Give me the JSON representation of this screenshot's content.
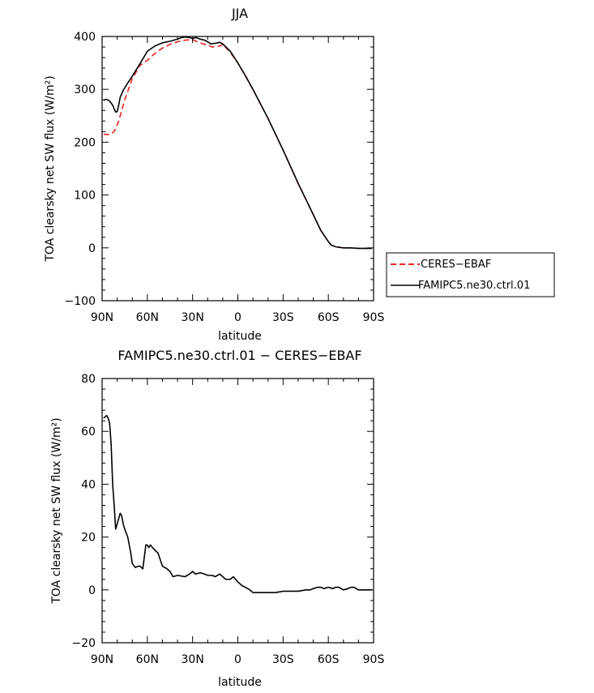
{
  "chart_data": [
    {
      "type": "line",
      "title": "JJA",
      "xlabel": "latitude",
      "ylabel": "TOA clearsky net SW flux (W/m²)",
      "xlim": [
        90,
        -90
      ],
      "ylim": [
        -100,
        400
      ],
      "xticks": [
        90,
        60,
        30,
        0,
        -30,
        -60,
        -90
      ],
      "xtick_labels": [
        "90N",
        "60N",
        "30N",
        "0",
        "30S",
        "60S",
        "90S"
      ],
      "yticks": [
        -100,
        0,
        100,
        200,
        300,
        400
      ],
      "ytick_labels": [
        "−100",
        "0",
        "100",
        "200",
        "300",
        "400"
      ],
      "legend_position": "right",
      "series": [
        {
          "name": "CERES−EBAF",
          "color": "#e8231f",
          "dash": "dashed",
          "x": [
            89,
            85,
            82,
            79,
            75,
            70,
            65,
            60,
            55,
            50,
            45,
            40,
            35,
            30,
            27,
            25,
            22,
            20,
            17,
            15,
            12,
            10,
            5,
            0,
            -5,
            -10,
            -20,
            -30,
            -40,
            -50,
            -55,
            -60,
            -62,
            -65,
            -70,
            -75,
            -80,
            -85,
            -89
          ],
          "y": [
            215,
            214,
            220,
            240,
            280,
            320,
            345,
            355,
            368,
            378,
            385,
            390,
            393,
            394,
            390,
            388,
            385,
            384,
            380,
            381,
            382,
            385,
            370,
            350,
            325,
            300,
            245,
            185,
            122,
            63,
            33,
            12,
            5,
            2,
            0,
            0,
            -1,
            -1,
            -1
          ]
        },
        {
          "name": "FAMIPC5.ne30.ctrl.01",
          "color": "#000000",
          "dash": "solid",
          "x": [
            89,
            87,
            85,
            83,
            82,
            81,
            80,
            79,
            78,
            76,
            73,
            70,
            65,
            60,
            55,
            50,
            45,
            40,
            37,
            35,
            32,
            30,
            28,
            25,
            22,
            20,
            18,
            15,
            12,
            10,
            5,
            0,
            -5,
            -10,
            -20,
            -30,
            -40,
            -50,
            -55,
            -60,
            -62,
            -65,
            -70,
            -75,
            -80,
            -85,
            -89
          ],
          "y": [
            280,
            281,
            278,
            270,
            263,
            257,
            258,
            270,
            285,
            298,
            312,
            325,
            348,
            372,
            382,
            388,
            391,
            395,
            398,
            399,
            398,
            396,
            398,
            395,
            393,
            390,
            386,
            387,
            389,
            386,
            372,
            350,
            326,
            300,
            245,
            185,
            122,
            63,
            33,
            12,
            5,
            2,
            0,
            0,
            -1,
            -1,
            -1
          ]
        }
      ]
    },
    {
      "type": "line",
      "title": "FAMIPC5.ne30.ctrl.01 − CERES−EBAF",
      "xlabel": "latitude",
      "ylabel": "TOA clearsky net SW flux (W/m²)",
      "xlim": [
        90,
        -90
      ],
      "ylim": [
        -20,
        80
      ],
      "xticks": [
        90,
        60,
        30,
        0,
        -30,
        -60,
        -90
      ],
      "xtick_labels": [
        "90N",
        "60N",
        "30N",
        "0",
        "30S",
        "60S",
        "90S"
      ],
      "yticks": [
        -20,
        0,
        20,
        40,
        60,
        80
      ],
      "ytick_labels": [
        "−20",
        "0",
        "20",
        "40",
        "60",
        "80"
      ],
      "series": [
        {
          "color": "#000000",
          "dash": "solid",
          "x": [
            89,
            87,
            86,
            85,
            84,
            83,
            82,
            81,
            80,
            78,
            77,
            76,
            75,
            73,
            71,
            70,
            68,
            66,
            65,
            63,
            61,
            60,
            59,
            58,
            55,
            53,
            50,
            47,
            45,
            43,
            40,
            35,
            32,
            30,
            28,
            25,
            22,
            20,
            17,
            15,
            12,
            10,
            8,
            5,
            3,
            0,
            -3,
            -5,
            -8,
            -10,
            -15,
            -20,
            -25,
            -30,
            -35,
            -40,
            -45,
            -48,
            -50,
            -53,
            -55,
            -57,
            -60,
            -63,
            -65,
            -67,
            -70,
            -73,
            -75,
            -77,
            -80,
            -85,
            -89
          ],
          "y": [
            65,
            66,
            65,
            63,
            55,
            40,
            32,
            23,
            25,
            29,
            28,
            25,
            23,
            20,
            14,
            10,
            8.5,
            9,
            9,
            8,
            17,
            17,
            16,
            17,
            15,
            14,
            9,
            8,
            7,
            5,
            5.5,
            5,
            6,
            7,
            6,
            6.5,
            6,
            5.5,
            5.5,
            5,
            6,
            5,
            4,
            4,
            5,
            3,
            1.5,
            1,
            0,
            -1,
            -1,
            -1,
            -1,
            -0.5,
            -0.5,
            -0.5,
            0,
            0,
            0.5,
            1,
            1,
            0.5,
            1,
            0.5,
            1,
            1,
            0,
            0.5,
            1,
            1,
            0,
            0,
            0
          ]
        }
      ]
    }
  ]
}
